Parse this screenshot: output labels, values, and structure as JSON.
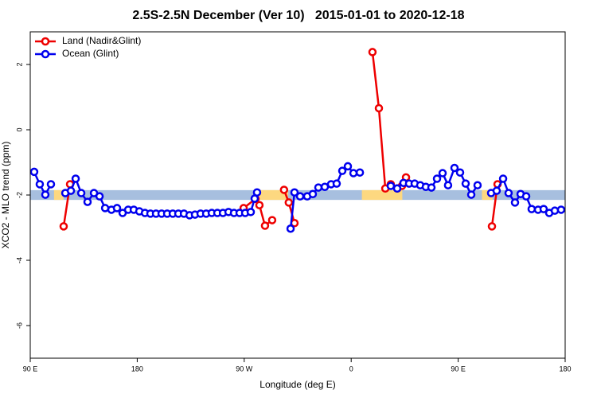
{
  "chart_data": {
    "type": "line",
    "title": "2.5S-2.5N December (Ver 10)   2015-01-01 to 2020-12-18",
    "xlabel": "Longitude (deg E)",
    "ylabel": "XCO2 - MLO trend (ppm)",
    "xlim": [
      90,
      540
    ],
    "ylim": [
      -7,
      3
    ],
    "xticks": [
      {
        "value": 90,
        "label": "90 E"
      },
      180,
      {
        "value": 270,
        "label": "90 W"
      },
      {
        "value": 360,
        "label": "0"
      },
      {
        "value": 450,
        "label": "90 E"
      },
      {
        "value": 540,
        "label": "180"
      }
    ],
    "yticks": [
      2,
      0,
      -2,
      -4,
      -6
    ],
    "legend": "top-left",
    "bands": [
      {
        "x": [
          90,
          540
        ],
        "y": [
          -2.15,
          -1.85
        ],
        "color": "#a7bfdf"
      },
      {
        "x": [
          110,
          118
        ],
        "y": [
          -2.15,
          -1.85
        ],
        "color": "#fdd880"
      },
      {
        "x": [
          280,
          307
        ],
        "y": [
          -2.15,
          -1.85
        ],
        "color": "#fdd880"
      },
      {
        "x": [
          369,
          403
        ],
        "y": [
          -2.15,
          -1.85
        ],
        "color": "#fdd880"
      },
      {
        "x": [
          470,
          479
        ],
        "y": [
          -2.15,
          -1.85
        ],
        "color": "#fdd880"
      }
    ],
    "series": [
      {
        "name": "Land (Nadir&Glint)",
        "color": "#ee0000",
        "x": [
          118.1,
          123.5,
          200,
          269.5,
          279.5,
          282.8,
          287.5,
          293.5,
          298,
          303.5,
          307.5,
          312.3,
          340,
          377.9,
          383.3,
          388.7,
          393.3,
          398.7,
          402.7,
          406.1,
          440,
          478.4,
          483.1
        ],
        "values": [
          -2.96,
          -1.67,
          null,
          -2.4,
          -2.12,
          -2.31,
          -2.94,
          -2.77,
          null,
          -1.84,
          -2.23,
          -2.86,
          null,
          2.38,
          0.66,
          -1.8,
          -1.67,
          -1.8,
          -1.72,
          -1.46,
          null,
          -2.96,
          -1.67
        ]
      },
      {
        "name": "Ocean (Glint)",
        "color": "#0000ee",
        "x": [
          93.3,
          98,
          102.7,
          107.4,
          113,
          119.5,
          124.2,
          128.2,
          132.9,
          138.2,
          143.6,
          148.3,
          153,
          158.3,
          163,
          167.7,
          172.4,
          177.1,
          181.8,
          186.5,
          191.1,
          195.8,
          200.5,
          205.2,
          209.9,
          214.6,
          219.3,
          224,
          228.6,
          233.3,
          238,
          242.7,
          247.4,
          252.1,
          256.8,
          261.4,
          266.1,
          270.8,
          275.5,
          278.8,
          280.8,
          295,
          309,
          312.3,
          317,
          323,
          327.7,
          332.4,
          337.8,
          343.1,
          347.8,
          352.5,
          357.2,
          361.9,
          367.3,
          380,
          393.3,
          398.7,
          404,
          408.7,
          413.4,
          418.1,
          422.8,
          427.5,
          432.2,
          436.9,
          441.5,
          446.9,
          451.6,
          456.3,
          461,
          466.3,
          472,
          477.7,
          482.4,
          487.8,
          492.4,
          497.8,
          502.5,
          507.2,
          511.8,
          517.2,
          521.9,
          526.6,
          531.3,
          536.6
        ],
        "values": [
          -1.29,
          -1.67,
          -1.99,
          -1.67,
          null,
          -1.94,
          -1.87,
          -1.5,
          -1.94,
          -2.21,
          -1.94,
          -2.04,
          -2.4,
          -2.45,
          -2.4,
          -2.55,
          -2.45,
          -2.45,
          -2.5,
          -2.55,
          -2.57,
          -2.57,
          -2.57,
          -2.57,
          -2.57,
          -2.57,
          -2.57,
          -2.62,
          -2.6,
          -2.57,
          -2.57,
          -2.55,
          -2.55,
          -2.55,
          -2.52,
          -2.55,
          -2.55,
          -2.55,
          -2.52,
          -2.11,
          -1.92,
          null,
          -3.03,
          -1.92,
          -2.04,
          -2.04,
          -1.97,
          -1.77,
          -1.75,
          -1.67,
          -1.65,
          -1.26,
          -1.12,
          -1.33,
          -1.31,
          null,
          -1.72,
          -1.8,
          -1.63,
          -1.65,
          -1.65,
          -1.7,
          -1.75,
          -1.77,
          -1.5,
          -1.33,
          -1.7,
          -1.17,
          -1.31,
          -1.65,
          -1.99,
          -1.7,
          null,
          -1.94,
          -1.87,
          -1.5,
          -1.94,
          -2.23,
          -1.97,
          -2.04,
          -2.43,
          -2.45,
          -2.43,
          -2.55,
          -2.48,
          -2.45
        ]
      }
    ]
  }
}
